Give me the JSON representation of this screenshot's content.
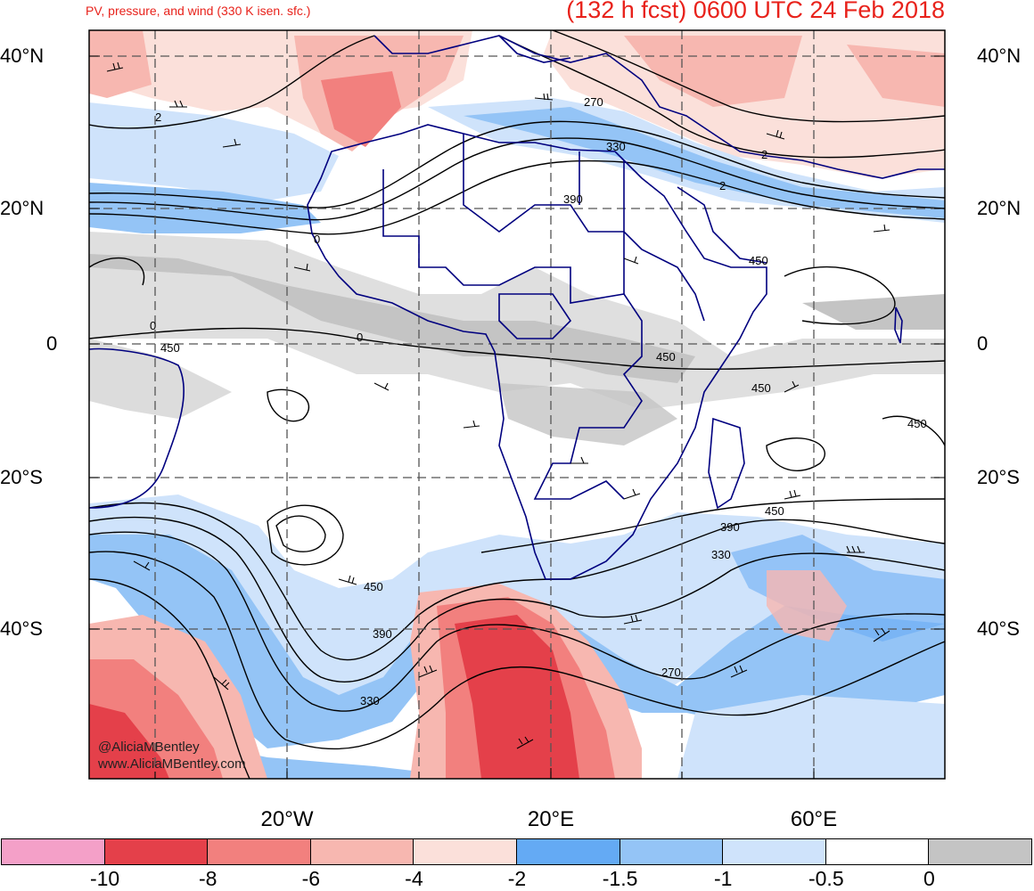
{
  "header": {
    "subtitle": "PV, pressure, and wind (330 K isen. sfc.)",
    "title": "(132 h fcst) 0600 UTC 24 Feb 2018"
  },
  "lat_labels": [
    {
      "left": "40°N",
      "right": "40°N"
    },
    {
      "left": "20°N",
      "right": "20°N"
    },
    {
      "left": "0",
      "right": "0"
    },
    {
      "left": "20°S",
      "right": "20°S"
    },
    {
      "left": "40°S",
      "right": "40°S"
    }
  ],
  "lon_labels": [
    "20°W",
    "20°E",
    "60°E"
  ],
  "contour_labels": [
    "2",
    "270",
    "330",
    "2",
    "390",
    "0",
    "450",
    "0",
    "450",
    "0",
    "450",
    "450",
    "450",
    "450",
    "390",
    "330",
    "450",
    "390",
    "330",
    "270",
    "2"
  ],
  "colorbar": {
    "colors": [
      "#f4a0c8",
      "#e4404a",
      "#f2807e",
      "#f7b7b0",
      "#fbe0da",
      "#64aaf4",
      "#94c4f6",
      "#cfe3fb",
      "#ffffff",
      "#c4c4c4"
    ],
    "labels": [
      "-10",
      "-8",
      "-6",
      "-4",
      "-2",
      "-1.5",
      "-1",
      "-0.5",
      "0"
    ]
  },
  "credits": {
    "handle": "@AliciaMBentley",
    "website": "www.AliciaMBentley.com"
  },
  "colors": {
    "title_red": "#e8221b",
    "coastline_navy": "#00007f"
  }
}
